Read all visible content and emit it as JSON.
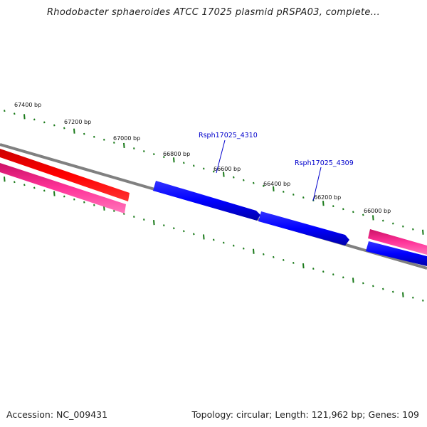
{
  "title": "Rhodobacter sphaeroides ATCC 17025 plasmid pRSPA03, complete...",
  "footer": {
    "accession": "Accession: NC_009431",
    "summary": "Topology: circular; Length: 121,962 bp; Genes: 109"
  },
  "colors": {
    "backbone": "#808080",
    "tick": "#1a7a1a",
    "forward_gene": "#0000ff",
    "red_gene": "#ff0000",
    "pink_gene": "#ff3399",
    "gene_label": "#0000cc"
  },
  "ticks": [
    {
      "label": "67400 bp"
    },
    {
      "label": "67200 bp"
    },
    {
      "label": "67000 bp"
    },
    {
      "label": "66800 bp"
    },
    {
      "label": "66600 bp"
    },
    {
      "label": "66400 bp"
    },
    {
      "label": "66200 bp"
    },
    {
      "label": "66000 bp"
    }
  ],
  "gene_labels": [
    {
      "label": "Rsph17025_4310"
    },
    {
      "label": "Rsph17025_4309"
    }
  ]
}
